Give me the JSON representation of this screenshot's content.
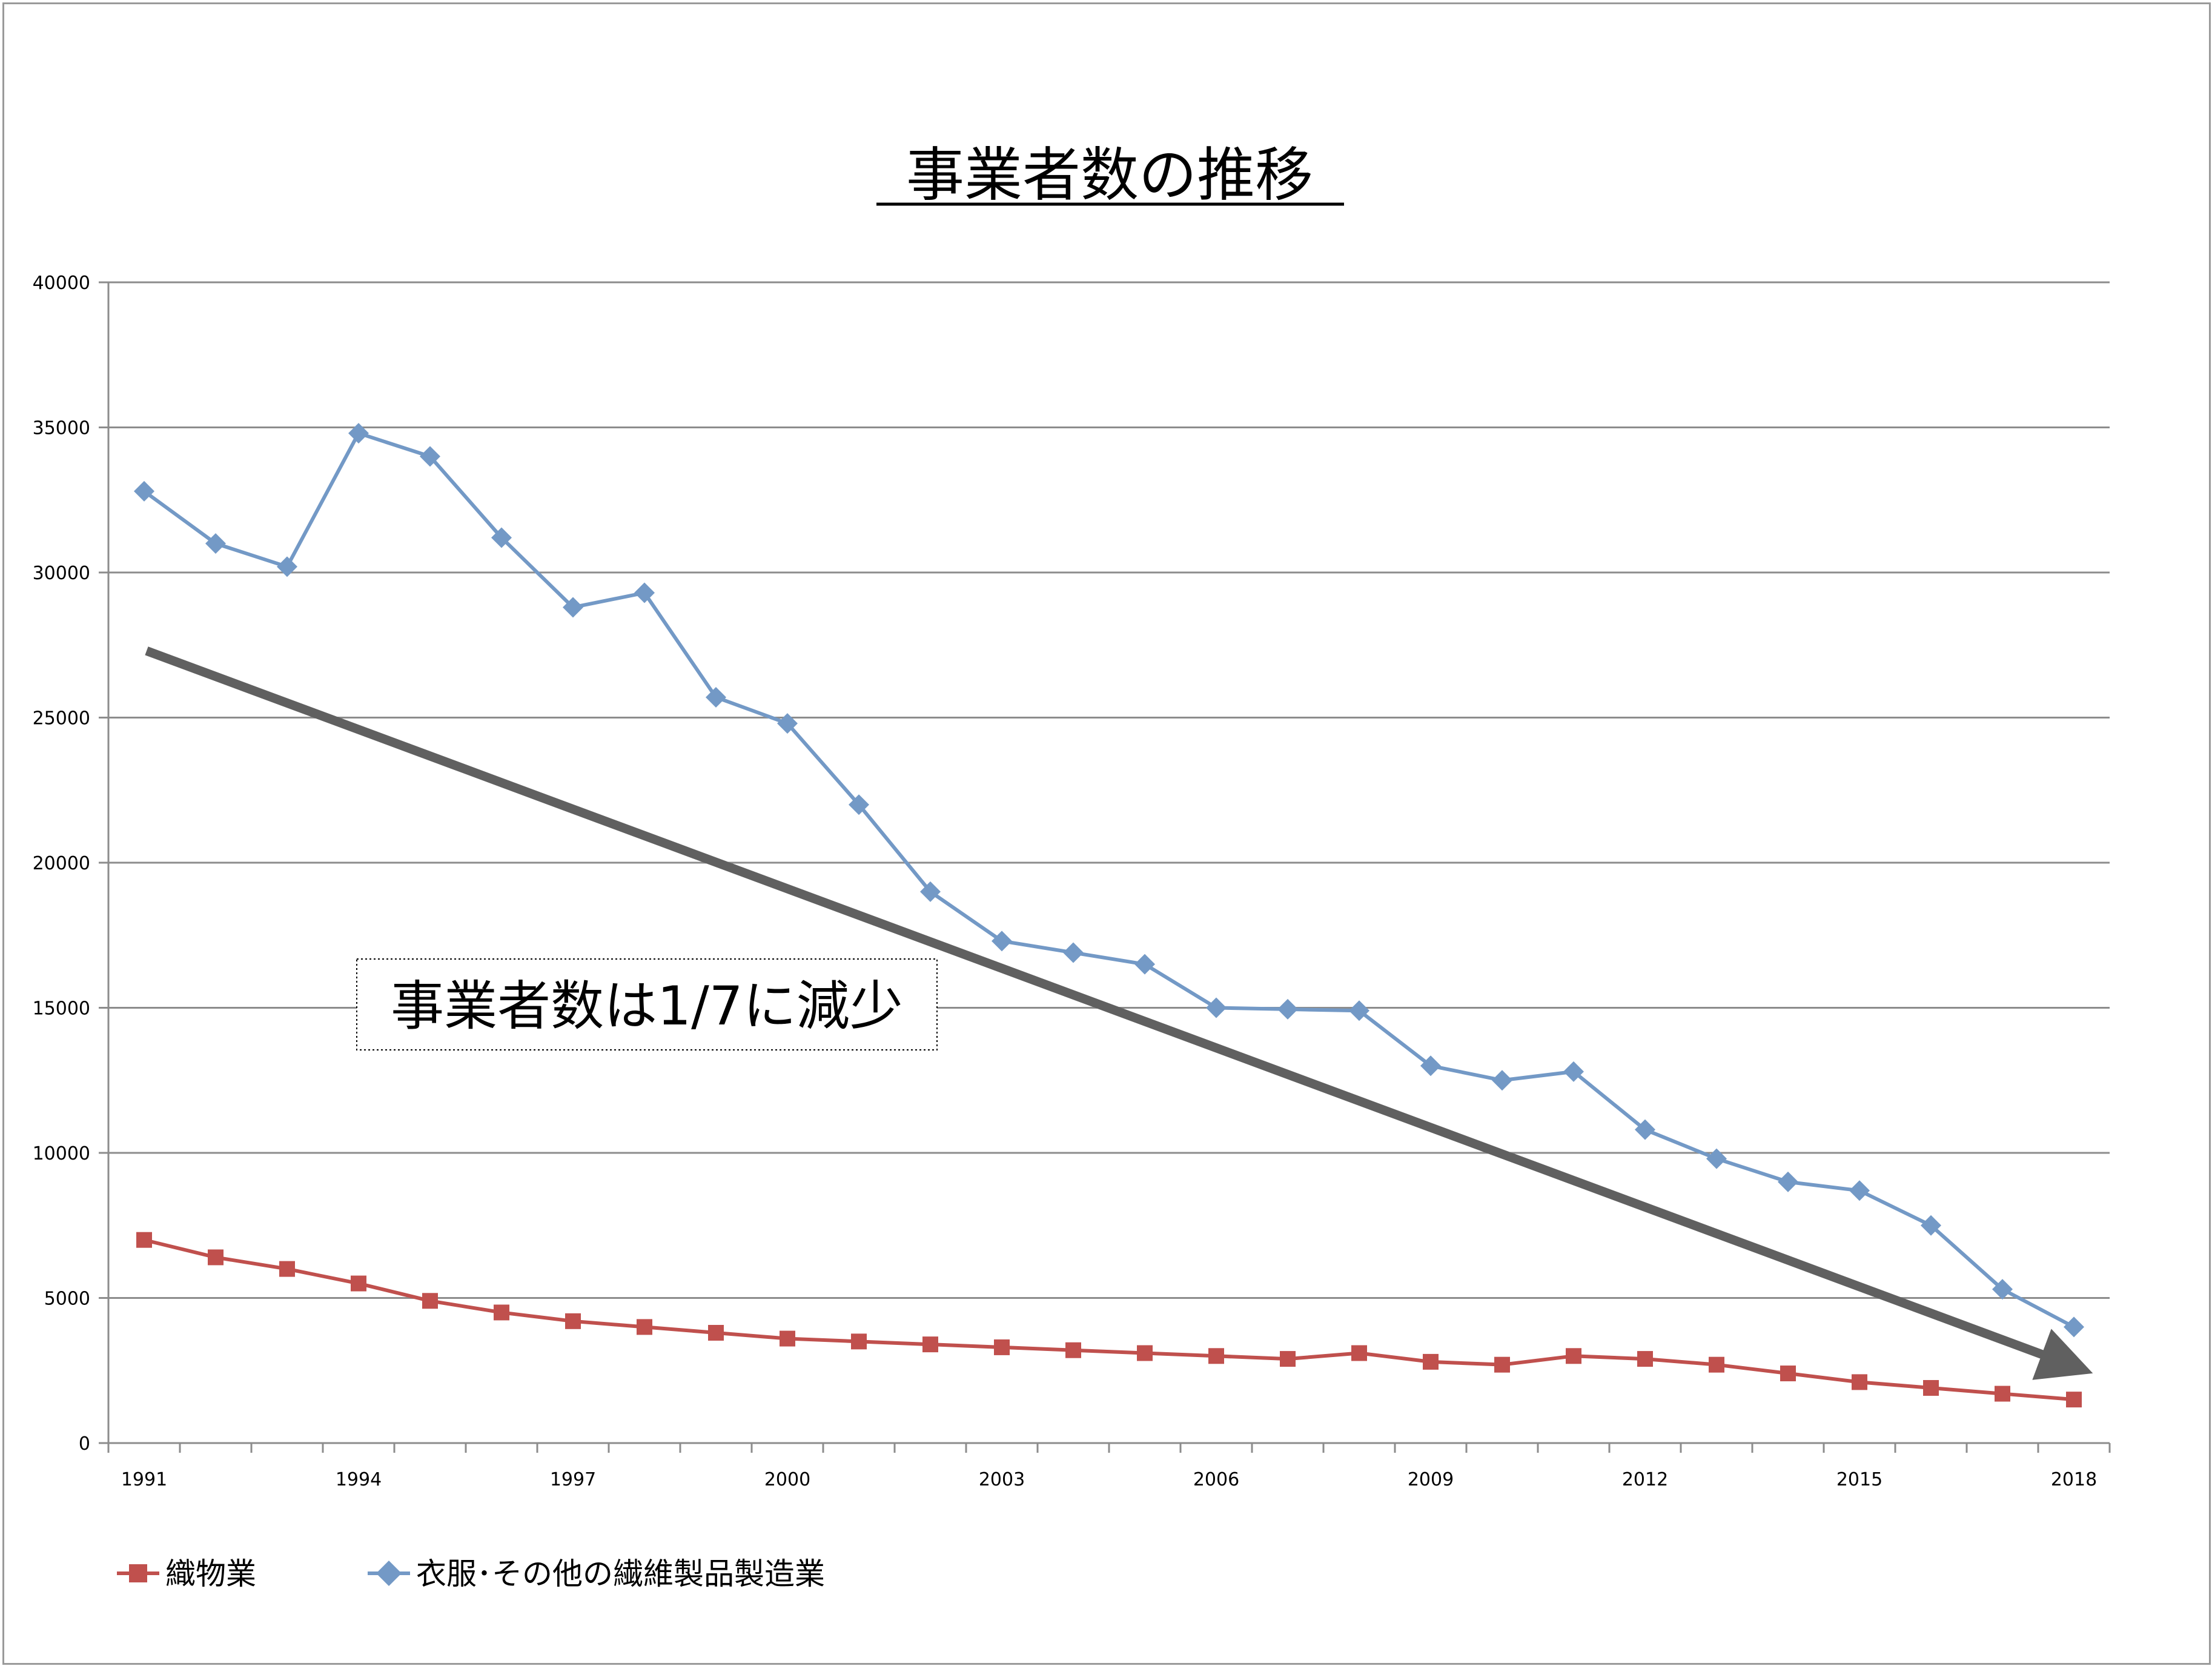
{
  "chart_data": {
    "type": "line",
    "title": "事業者数の推移",
    "xlabel": "",
    "ylabel": "",
    "x": [
      1991,
      1992,
      1993,
      1994,
      1995,
      1996,
      1997,
      1998,
      1999,
      2000,
      2001,
      2002,
      2003,
      2004,
      2005,
      2006,
      2007,
      2008,
      2009,
      2010,
      2011,
      2012,
      2013,
      2014,
      2015,
      2016,
      2017,
      2018
    ],
    "xtick_labels": [
      "1991",
      "1994",
      "1997",
      "2000",
      "2003",
      "2006",
      "2009",
      "2012",
      "2015",
      "2018"
    ],
    "ytick_labels": [
      "0",
      "5000",
      "10000",
      "15000",
      "20000",
      "25000",
      "30000",
      "35000",
      "40000"
    ],
    "ylim": [
      0,
      40000
    ],
    "grid": "horizontal",
    "legend_position": "bottom-left",
    "series": [
      {
        "name": "織物業",
        "color": "#c0504d",
        "marker": "square",
        "values": [
          7000,
          6400,
          6000,
          5500,
          4900,
          4500,
          4200,
          4000,
          3800,
          3600,
          3500,
          3400,
          3300,
          3200,
          3100,
          3000,
          2900,
          3100,
          2800,
          2700,
          3000,
          2900,
          2700,
          2400,
          2100,
          1900,
          1700,
          1500
        ]
      },
      {
        "name": "衣服･その他の繊維製品製造業",
        "color": "#7399c6",
        "marker": "diamond",
        "values": [
          32800,
          31000,
          30200,
          34800,
          34000,
          31200,
          28800,
          29300,
          25700,
          24800,
          22000,
          19000,
          17300,
          16900,
          16500,
          15000,
          14950,
          14900,
          13000,
          12500,
          12800,
          10800,
          9800,
          9000,
          8700,
          7500,
          5300,
          4000
        ]
      }
    ],
    "annotation": {
      "text": "事業者数は1/7に減少",
      "arrow_color": "#606060",
      "arrow_from": [
        1991,
        27300
      ],
      "arrow_to": [
        2018,
        2600
      ]
    }
  }
}
